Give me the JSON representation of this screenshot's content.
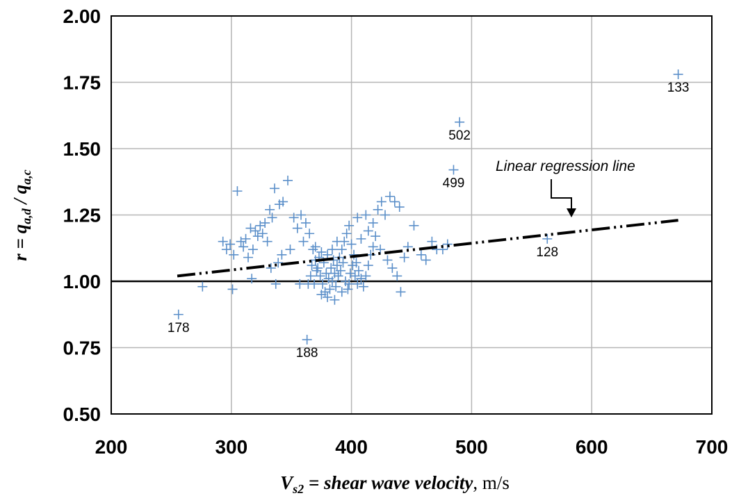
{
  "chart_data": {
    "type": "scatter",
    "xlabel": {
      "var": "V",
      "sub": "s2",
      "text": " = shear wave velocity",
      "unit": ", m/s"
    },
    "ylabel": {
      "prefix": "r  = ",
      "num": "q",
      "num_sub": "a,d",
      "sep": "  /  ",
      "den": "q",
      "den_sub": "a,c"
    },
    "xlim": [
      200,
      700
    ],
    "ylim": [
      0.5,
      2.0
    ],
    "x_ticks": [
      "200",
      "300",
      "400",
      "500",
      "600",
      "700"
    ],
    "y_ticks": [
      "0.50",
      "0.75",
      "1.00",
      "1.25",
      "1.50",
      "1.75",
      "2.00"
    ],
    "grid": true,
    "colors": {
      "points": "#5b8fc9",
      "grid": "#b5b5b5",
      "reference": "#000000",
      "regression": "#000000"
    },
    "reference_line": {
      "y": 1.0
    },
    "regression_line": {
      "x": [
        255,
        672
      ],
      "y": [
        1.02,
        1.23
      ]
    },
    "annotation": {
      "text": "Linear regression line"
    },
    "labeled_points": [
      {
        "x": 672,
        "y": 1.78,
        "label": "133"
      },
      {
        "x": 490,
        "y": 1.6,
        "label": "502"
      },
      {
        "x": 485,
        "y": 1.42,
        "label": "499"
      },
      {
        "x": 563,
        "y": 1.16,
        "label": "128"
      },
      {
        "x": 256,
        "y": 0.875,
        "label": "178"
      },
      {
        "x": 363,
        "y": 0.78,
        "label": "188"
      }
    ],
    "points": [
      [
        276,
        0.98
      ],
      [
        301,
        0.97
      ],
      [
        317,
        1.01
      ],
      [
        337,
        0.99
      ],
      [
        357,
        0.99
      ],
      [
        293,
        1.15
      ],
      [
        296,
        1.12
      ],
      [
        299,
        1.14
      ],
      [
        302,
        1.1
      ],
      [
        305,
        1.34
      ],
      [
        308,
        1.15
      ],
      [
        310,
        1.13
      ],
      [
        312,
        1.16
      ],
      [
        314,
        1.09
      ],
      [
        316,
        1.2
      ],
      [
        318,
        1.12
      ],
      [
        320,
        1.19
      ],
      [
        322,
        1.17
      ],
      [
        324,
        1.21
      ],
      [
        326,
        1.18
      ],
      [
        328,
        1.22
      ],
      [
        330,
        1.15
      ],
      [
        332,
        1.27
      ],
      [
        334,
        1.24
      ],
      [
        336,
        1.35
      ],
      [
        340,
        1.29
      ],
      [
        343,
        1.3
      ],
      [
        347,
        1.38
      ],
      [
        352,
        1.24
      ],
      [
        355,
        1.2
      ],
      [
        358,
        1.25
      ],
      [
        349,
        1.12
      ],
      [
        342,
        1.1
      ],
      [
        339,
        1.07
      ],
      [
        333,
        1.05
      ],
      [
        362,
        1.22
      ],
      [
        360,
        1.15
      ],
      [
        365,
        1.18
      ],
      [
        368,
        1.12
      ],
      [
        370,
        1.08
      ],
      [
        372,
        1.05
      ],
      [
        374,
        1.02
      ],
      [
        376,
        0.99
      ],
      [
        378,
        0.96
      ],
      [
        380,
        0.94
      ],
      [
        382,
        0.97
      ],
      [
        384,
        1.0
      ],
      [
        386,
        1.03
      ],
      [
        388,
        1.06
      ],
      [
        390,
        1.09
      ],
      [
        392,
        1.12
      ],
      [
        394,
        1.15
      ],
      [
        396,
        1.18
      ],
      [
        398,
        1.21
      ],
      [
        400,
        1.14
      ],
      [
        402,
        1.1
      ],
      [
        404,
        1.07
      ],
      [
        406,
        1.04
      ],
      [
        408,
        1.01
      ],
      [
        410,
        0.98
      ],
      [
        412,
        1.02
      ],
      [
        414,
        1.06
      ],
      [
        416,
        1.1
      ],
      [
        418,
        1.13
      ],
      [
        420,
        1.17
      ],
      [
        366,
        1.02
      ],
      [
        369,
        0.99
      ],
      [
        371,
        1.04
      ],
      [
        373,
        1.09
      ],
      [
        375,
        1.11
      ],
      [
        377,
        1.07
      ],
      [
        379,
        1.03
      ],
      [
        381,
        1.01
      ],
      [
        383,
        1.05
      ],
      [
        385,
        1.08
      ],
      [
        387,
        0.98
      ],
      [
        389,
        1.02
      ],
      [
        391,
        1.04
      ],
      [
        393,
        1.07
      ],
      [
        395,
        1.0
      ],
      [
        397,
        0.97
      ],
      [
        399,
        1.03
      ],
      [
        401,
        1.06
      ],
      [
        403,
        1.02
      ],
      [
        405,
        0.99
      ],
      [
        367,
        1.06
      ],
      [
        380,
        1.1
      ],
      [
        384,
        1.12
      ],
      [
        388,
        1.15
      ],
      [
        370,
        1.13
      ],
      [
        375,
        0.95
      ],
      [
        386,
        0.93
      ],
      [
        392,
        0.96
      ],
      [
        398,
        0.99
      ],
      [
        364,
        0.99
      ],
      [
        412,
        1.25
      ],
      [
        418,
        1.22
      ],
      [
        422,
        1.27
      ],
      [
        425,
        1.3
      ],
      [
        428,
        1.25
      ],
      [
        432,
        1.32
      ],
      [
        436,
        1.3
      ],
      [
        440,
        1.28
      ],
      [
        424,
        1.12
      ],
      [
        430,
        1.08
      ],
      [
        434,
        1.05
      ],
      [
        438,
        1.02
      ],
      [
        441,
        0.96
      ],
      [
        444,
        1.09
      ],
      [
        447,
        1.13
      ],
      [
        452,
        1.21
      ],
      [
        458,
        1.1
      ],
      [
        462,
        1.08
      ],
      [
        467,
        1.15
      ],
      [
        471,
        1.12
      ],
      [
        476,
        1.12
      ],
      [
        480,
        1.14
      ],
      [
        408,
        1.16
      ],
      [
        414,
        1.19
      ],
      [
        405,
        1.24
      ]
    ]
  }
}
